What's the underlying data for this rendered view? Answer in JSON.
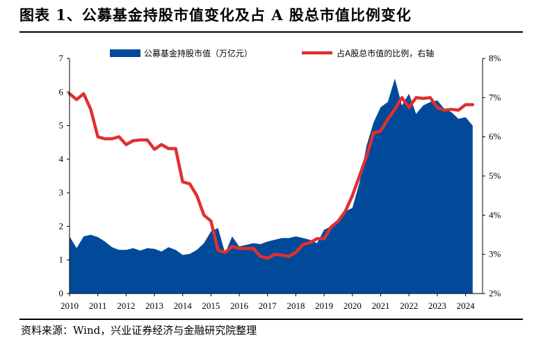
{
  "title": "图表 1、公募基金持股市值变化及占 A 股总市值比例变化",
  "source": "资料来源：Wind，兴业证券经济与金融研究院整理",
  "chart_data": {
    "type": "area",
    "x_ticks": [
      "2010",
      "2011",
      "2012",
      "2013",
      "2014",
      "2015",
      "2016",
      "2017",
      "2018",
      "2019",
      "2020",
      "2021",
      "2022",
      "2023",
      "2024"
    ],
    "y_left": {
      "min": 0,
      "max": 7,
      "ticks": [
        "0",
        "1",
        "2",
        "3",
        "4",
        "5",
        "6",
        "7"
      ]
    },
    "y_right": {
      "min": 2,
      "max": 8,
      "ticks": [
        "2%",
        "3%",
        "4%",
        "5%",
        "6%",
        "7%",
        "8%"
      ]
    },
    "legend_position": "top",
    "series": [
      {
        "name": "公募基金持股市值（万亿元）",
        "kind": "area",
        "axis": "left",
        "color": "#004a99",
        "x": [
          2010.0,
          2010.25,
          2010.5,
          2010.75,
          2011.0,
          2011.25,
          2011.5,
          2011.75,
          2012.0,
          2012.25,
          2012.5,
          2012.75,
          2013.0,
          2013.25,
          2013.5,
          2013.75,
          2014.0,
          2014.25,
          2014.5,
          2014.75,
          2015.0,
          2015.25,
          2015.5,
          2015.75,
          2016.0,
          2016.25,
          2016.5,
          2016.75,
          2017.0,
          2017.25,
          2017.5,
          2017.75,
          2018.0,
          2018.25,
          2018.5,
          2018.75,
          2019.0,
          2019.25,
          2019.5,
          2019.75,
          2020.0,
          2020.25,
          2020.5,
          2020.75,
          2021.0,
          2021.25,
          2021.5,
          2021.75,
          2022.0,
          2022.25,
          2022.5,
          2022.75,
          2023.0,
          2023.25,
          2023.5,
          2023.75,
          2024.0,
          2024.25
        ],
        "values": [
          1.7,
          1.35,
          1.7,
          1.75,
          1.68,
          1.55,
          1.38,
          1.3,
          1.3,
          1.35,
          1.28,
          1.35,
          1.33,
          1.25,
          1.38,
          1.3,
          1.15,
          1.18,
          1.3,
          1.5,
          1.85,
          1.95,
          1.2,
          1.7,
          1.4,
          1.45,
          1.5,
          1.47,
          1.55,
          1.6,
          1.65,
          1.65,
          1.7,
          1.65,
          1.6,
          1.5,
          1.9,
          2.0,
          2.2,
          2.45,
          2.55,
          3.3,
          4.4,
          5.1,
          5.55,
          5.7,
          6.4,
          5.6,
          5.95,
          5.35,
          5.6,
          5.7,
          5.75,
          5.5,
          5.4,
          5.2,
          5.25,
          5.0
        ]
      },
      {
        "name": "占A股总市值的比例，右轴",
        "kind": "line",
        "axis": "right",
        "color": "#e03030",
        "x": [
          2010.0,
          2010.25,
          2010.5,
          2010.75,
          2011.0,
          2011.25,
          2011.5,
          2011.75,
          2012.0,
          2012.25,
          2012.5,
          2012.75,
          2013.0,
          2013.25,
          2013.5,
          2013.75,
          2014.0,
          2014.25,
          2014.5,
          2014.75,
          2015.0,
          2015.25,
          2015.5,
          2015.75,
          2016.0,
          2016.25,
          2016.5,
          2016.75,
          2017.0,
          2017.25,
          2017.5,
          2017.75,
          2018.0,
          2018.25,
          2018.5,
          2018.75,
          2019.0,
          2019.25,
          2019.5,
          2019.75,
          2020.0,
          2020.25,
          2020.5,
          2020.75,
          2021.0,
          2021.25,
          2021.5,
          2021.75,
          2022.0,
          2022.25,
          2022.5,
          2022.75,
          2023.0,
          2023.25,
          2023.5,
          2023.75,
          2024.0,
          2024.25
        ],
        "values": [
          7.1,
          6.95,
          7.1,
          6.7,
          6.0,
          5.95,
          5.95,
          6.0,
          5.8,
          5.9,
          5.92,
          5.92,
          5.68,
          5.8,
          5.7,
          5.7,
          4.85,
          4.8,
          4.5,
          4.0,
          3.85,
          3.1,
          3.05,
          3.2,
          3.15,
          3.15,
          3.15,
          2.95,
          2.9,
          3.0,
          2.98,
          2.95,
          3.05,
          3.25,
          3.3,
          3.4,
          3.4,
          3.7,
          3.85,
          4.1,
          4.5,
          5.0,
          5.5,
          6.1,
          6.15,
          6.45,
          6.7,
          7.0,
          6.75,
          7.0,
          6.98,
          7.0,
          6.75,
          6.68,
          6.7,
          6.68,
          6.82,
          6.82
        ]
      }
    ]
  }
}
